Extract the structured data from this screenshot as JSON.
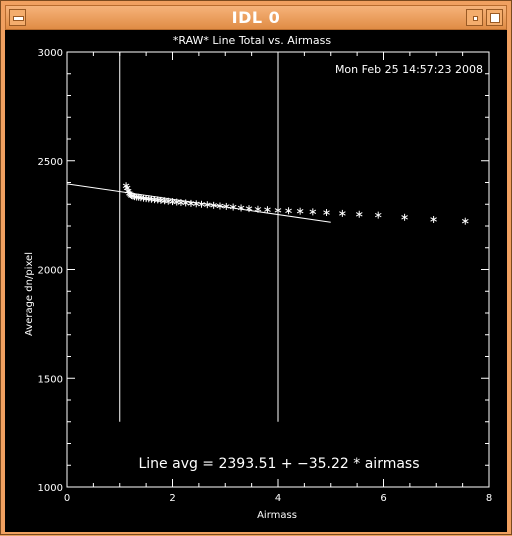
{
  "window": {
    "title": "IDL 0"
  },
  "plot": {
    "title": "*RAW* Line Total vs. Airmass",
    "timestamp": "Mon Feb 25 14:57:23 2008",
    "fit_label": "Line avg = 2393.51 + −35.22 * airmass"
  },
  "chart_data": {
    "type": "scatter",
    "title": "*RAW* Line Total vs. Airmass",
    "xlabel": "Airmass",
    "ylabel": "Average dn/pixel",
    "xlim": [
      0,
      8
    ],
    "ylim": [
      1000,
      3000
    ],
    "xticks": [
      "0",
      "2",
      "4",
      "6",
      "8"
    ],
    "yticks": [
      "1000",
      "1500",
      "2000",
      "2500",
      "3000"
    ],
    "marker": "asterisk",
    "color": "#ffffff",
    "series": [
      {
        "x": [
          1.12,
          1.14,
          1.16,
          1.18,
          1.2,
          1.22,
          1.25,
          1.28,
          1.32,
          1.36,
          1.4,
          1.45,
          1.5,
          1.55,
          1.6,
          1.66,
          1.72,
          1.78,
          1.85,
          1.92,
          2.0,
          2.08,
          2.16,
          2.25,
          2.35,
          2.45,
          2.55,
          2.66,
          2.78,
          2.9,
          3.02,
          3.15,
          3.3,
          3.45,
          3.62,
          3.8,
          4.0,
          4.2,
          4.42,
          4.66,
          4.92,
          5.22,
          5.54,
          5.9,
          6.4,
          6.95,
          7.55
        ],
        "y": [
          2385,
          2375,
          2360,
          2350,
          2345,
          2340,
          2338,
          2335,
          2333,
          2332,
          2330,
          2328,
          2326,
          2325,
          2323,
          2321,
          2320,
          2318,
          2316,
          2314,
          2312,
          2310,
          2308,
          2306,
          2304,
          2302,
          2300,
          2298,
          2295,
          2292,
          2290,
          2287,
          2283,
          2280,
          2277,
          2275,
          2272,
          2270,
          2268,
          2265,
          2262,
          2258,
          2254,
          2250,
          2240,
          2230,
          2222
        ]
      }
    ],
    "fit_line": {
      "intercept": 2393.51,
      "slope": -35.22,
      "x_range": [
        0,
        5
      ]
    },
    "vertical_lines": [
      1.0,
      4.0
    ]
  }
}
